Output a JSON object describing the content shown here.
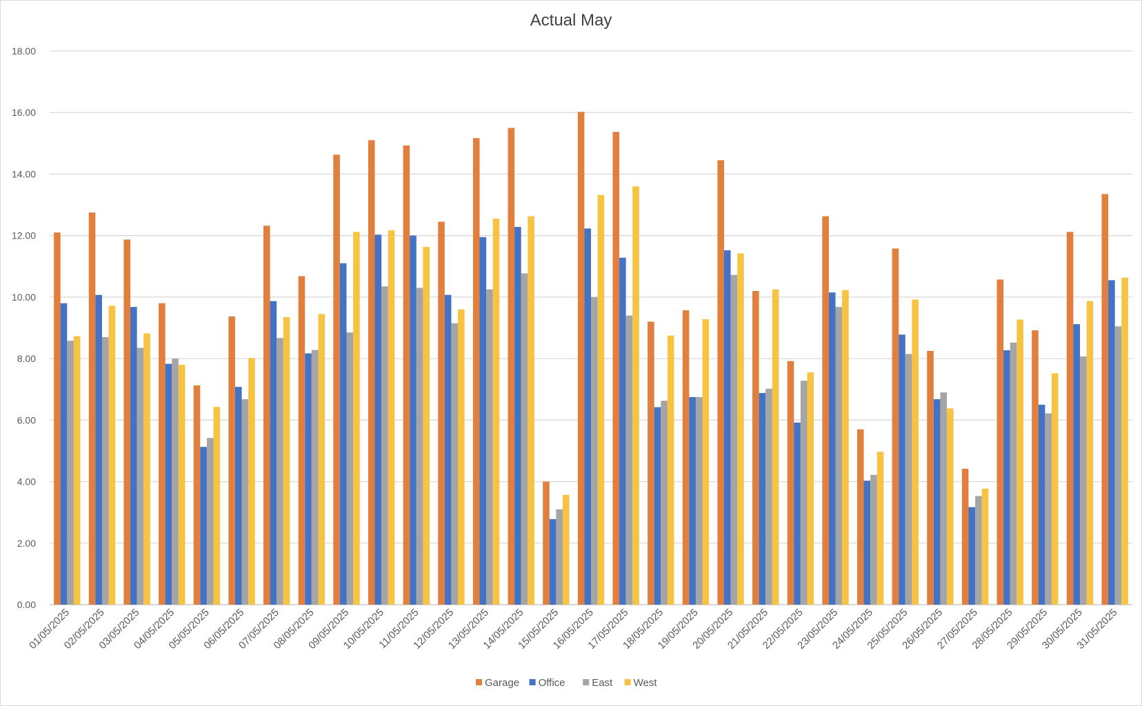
{
  "chart_data": {
    "type": "bar",
    "title": "Actual May",
    "xlabel": "",
    "ylabel": "",
    "ylim": [
      0,
      18
    ],
    "yticks": [
      "0.00",
      "2.00",
      "4.00",
      "6.00",
      "8.00",
      "10.00",
      "12.00",
      "14.00",
      "16.00",
      "18.00"
    ],
    "grid": true,
    "legend_position": "bottom",
    "categories": [
      "01/05/2025",
      "02/05/2025",
      "03/05/2025",
      "04/05/2025",
      "05/05/2025",
      "06/05/2025",
      "07/05/2025",
      "08/05/2025",
      "09/05/2025",
      "10/05/2025",
      "11/05/2025",
      "12/05/2025",
      "13/05/2025",
      "14/05/2025",
      "15/05/2025",
      "16/05/2025",
      "17/05/2025",
      "18/05/2025",
      "19/05/2025",
      "20/05/2025",
      "21/05/2025",
      "22/05/2025",
      "23/05/2025",
      "24/05/2025",
      "25/05/2025",
      "26/05/2025",
      "27/05/2025",
      "28/05/2025",
      "29/05/2025",
      "30/05/2025",
      "31/05/2025"
    ],
    "series": [
      {
        "name": "Garage",
        "color": "#e07f3e",
        "values": [
          12.1,
          12.75,
          11.87,
          9.8,
          7.13,
          9.37,
          12.32,
          10.68,
          14.63,
          15.1,
          14.93,
          12.45,
          15.17,
          15.5,
          4.0,
          16.02,
          15.37,
          9.2,
          9.57,
          14.45,
          10.2,
          7.92,
          12.63,
          5.7,
          11.58,
          8.25,
          4.42,
          10.57,
          8.92,
          12.12,
          13.35
        ]
      },
      {
        "name": "Office",
        "color": "#4472c4",
        "values": [
          9.8,
          10.07,
          9.68,
          7.83,
          5.13,
          7.08,
          9.87,
          8.17,
          11.1,
          12.03,
          12.0,
          10.07,
          11.95,
          12.28,
          2.78,
          12.23,
          11.28,
          6.42,
          6.75,
          11.52,
          6.88,
          5.92,
          10.15,
          4.03,
          8.78,
          6.68,
          3.17,
          8.27,
          6.5,
          9.12,
          10.55
        ]
      },
      {
        "name": "East",
        "color": "#a5a5a5",
        "values": [
          8.58,
          8.7,
          8.35,
          8.0,
          5.42,
          6.68,
          8.67,
          8.28,
          8.85,
          10.35,
          10.3,
          9.15,
          10.25,
          10.77,
          3.1,
          10.0,
          9.4,
          6.63,
          6.75,
          10.72,
          7.02,
          7.28,
          9.68,
          4.22,
          8.15,
          6.9,
          3.53,
          8.52,
          6.22,
          8.07,
          9.05
        ]
      },
      {
        "name": "West",
        "color": "#f7c342",
        "values": [
          8.73,
          9.72,
          8.82,
          7.8,
          6.43,
          8.02,
          9.35,
          9.45,
          12.12,
          12.17,
          11.63,
          9.6,
          12.55,
          12.63,
          3.57,
          13.32,
          13.6,
          8.75,
          9.28,
          11.42,
          10.25,
          7.55,
          10.23,
          4.97,
          9.92,
          6.38,
          3.77,
          9.27,
          7.52,
          9.87,
          10.63
        ]
      }
    ]
  }
}
